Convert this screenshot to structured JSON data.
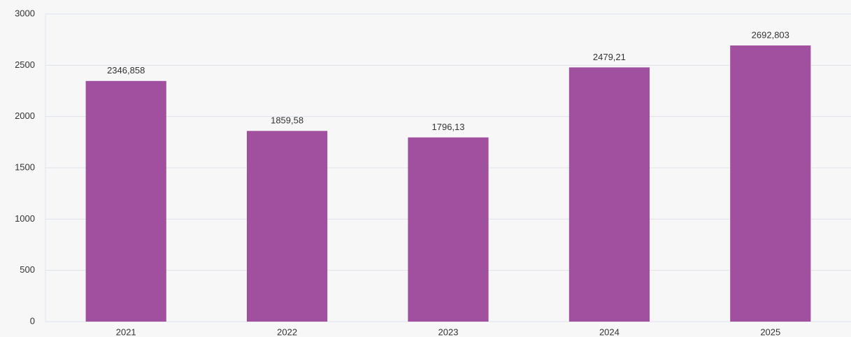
{
  "chart_data": {
    "type": "bar",
    "categories": [
      "2021",
      "2022",
      "2023",
      "2024",
      "2025"
    ],
    "values": [
      2346.858,
      1859.58,
      1796.13,
      2479.21,
      2692.803
    ],
    "value_labels": [
      "2346,858",
      "1859,58",
      "1796,13",
      "2479,21",
      "2692,803"
    ],
    "color": "#a0509f",
    "ylim": [
      0,
      3000
    ],
    "yticks": [
      0,
      500,
      1000,
      1500,
      2000,
      2500,
      3000
    ],
    "grid": true
  }
}
